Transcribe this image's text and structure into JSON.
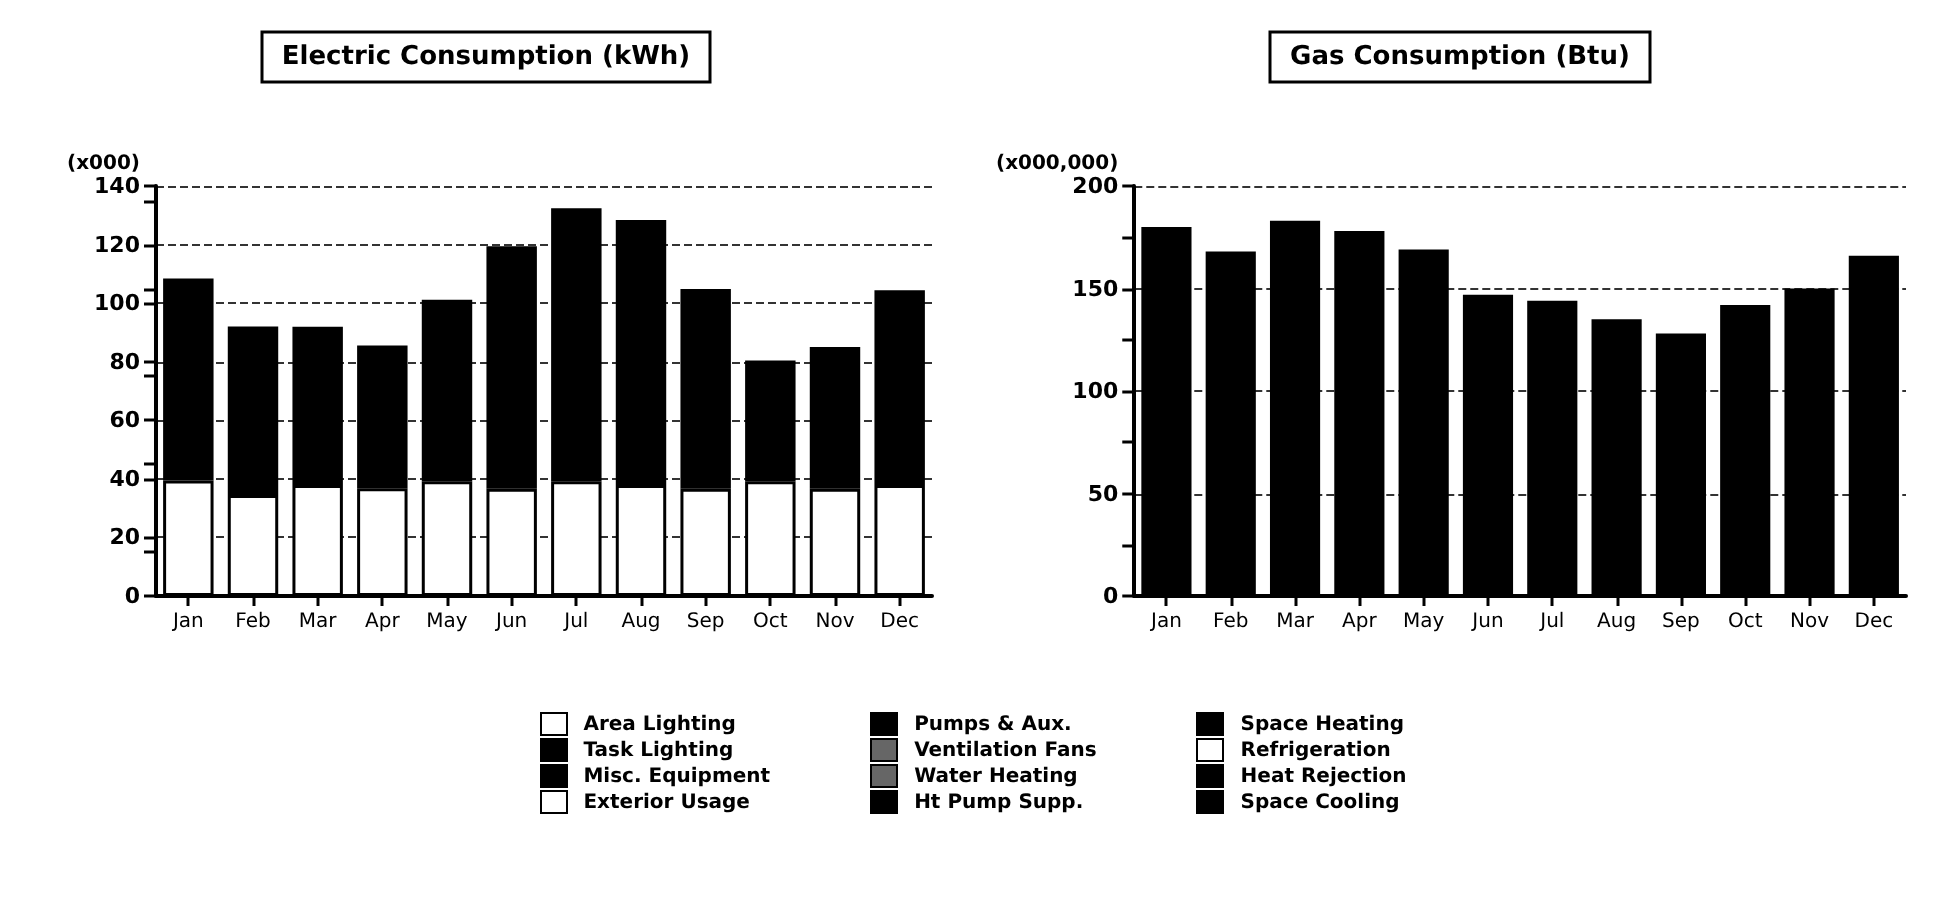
{
  "chart_data": [
    {
      "type": "bar",
      "title": "Electric Consumption (kWh)",
      "ylabel": "(x000)",
      "categories": [
        "Jan",
        "Feb",
        "Mar",
        "Apr",
        "May",
        "Jun",
        "Jul",
        "Aug",
        "Sep",
        "Oct",
        "Nov",
        "Dec"
      ],
      "stacked": true,
      "ylim": [
        0,
        140
      ],
      "yticks": [
        0,
        20,
        40,
        60,
        80,
        100,
        120,
        140
      ],
      "grid": "y",
      "legend": "bottom",
      "series": [
        {
          "name": "Area Lighting",
          "color": "#ffffff",
          "values": [
            39.4,
            34.5,
            37.9,
            36.8,
            39.2,
            36.6,
            39.2,
            37.9,
            36.6,
            39.2,
            36.6,
            37.9
          ]
        },
        {
          "name": "Task Lighting",
          "color": "#000000",
          "values": [
            null,
            null,
            null,
            null,
            null,
            null,
            null,
            null,
            null,
            null,
            null,
            null
          ]
        },
        {
          "name": "Misc. Equipment",
          "color": "#000000",
          "values": [
            69,
            57.5,
            54,
            48.7,
            62,
            82.8,
            93.2,
            90.5,
            68.2,
            41.2,
            48.4,
            66.5
          ]
        },
        {
          "name": "Exterior Usage",
          "color": "#ffffff",
          "values": [
            null,
            null,
            null,
            null,
            null,
            null,
            null,
            null,
            null,
            null,
            null,
            null
          ]
        },
        {
          "name": "Pumps & Aux.",
          "color": "#000000",
          "values": [
            null,
            null,
            null,
            null,
            null,
            null,
            null,
            null,
            null,
            null,
            null,
            null
          ]
        },
        {
          "name": "Ventilation Fans",
          "color": "#666666",
          "values": [
            null,
            null,
            null,
            null,
            null,
            null,
            null,
            null,
            null,
            null,
            null,
            null
          ]
        },
        {
          "name": "Water Heating",
          "color": "#666666",
          "values": [
            null,
            null,
            null,
            null,
            null,
            null,
            null,
            null,
            null,
            null,
            null,
            null
          ]
        },
        {
          "name": "Ht Pump Supp.",
          "color": "#000000",
          "values": [
            null,
            null,
            null,
            null,
            null,
            null,
            null,
            null,
            null,
            null,
            null,
            null
          ]
        }
      ]
    },
    {
      "type": "bar",
      "title": "Gas Consumption (Btu)",
      "ylabel": "(x000,000)",
      "categories": [
        "Jan",
        "Feb",
        "Mar",
        "Apr",
        "May",
        "Jun",
        "Jul",
        "Aug",
        "Sep",
        "Oct",
        "Nov",
        "Dec"
      ],
      "stacked": true,
      "ylim": [
        0,
        200
      ],
      "yticks": [
        0,
        50,
        100,
        150,
        200
      ],
      "grid": "y",
      "legend": "bottom",
      "series": [
        {
          "name": "Space Heating",
          "color": "#000000",
          "values": [
            180,
            168,
            183,
            178,
            169,
            147,
            144,
            135,
            128,
            142,
            150,
            166
          ]
        },
        {
          "name": "Refrigeration",
          "color": "#ffffff",
          "values": [
            null,
            null,
            null,
            null,
            null,
            null,
            null,
            null,
            null,
            null,
            null,
            null
          ]
        },
        {
          "name": "Heat Rejection",
          "color": "#000000",
          "values": [
            null,
            null,
            null,
            null,
            null,
            null,
            null,
            null,
            null,
            null,
            null,
            null
          ]
        },
        {
          "name": "Space Cooling",
          "color": "#000000",
          "values": [
            null,
            null,
            null,
            null,
            null,
            null,
            null,
            null,
            null,
            null,
            null,
            null
          ]
        }
      ]
    }
  ]
}
